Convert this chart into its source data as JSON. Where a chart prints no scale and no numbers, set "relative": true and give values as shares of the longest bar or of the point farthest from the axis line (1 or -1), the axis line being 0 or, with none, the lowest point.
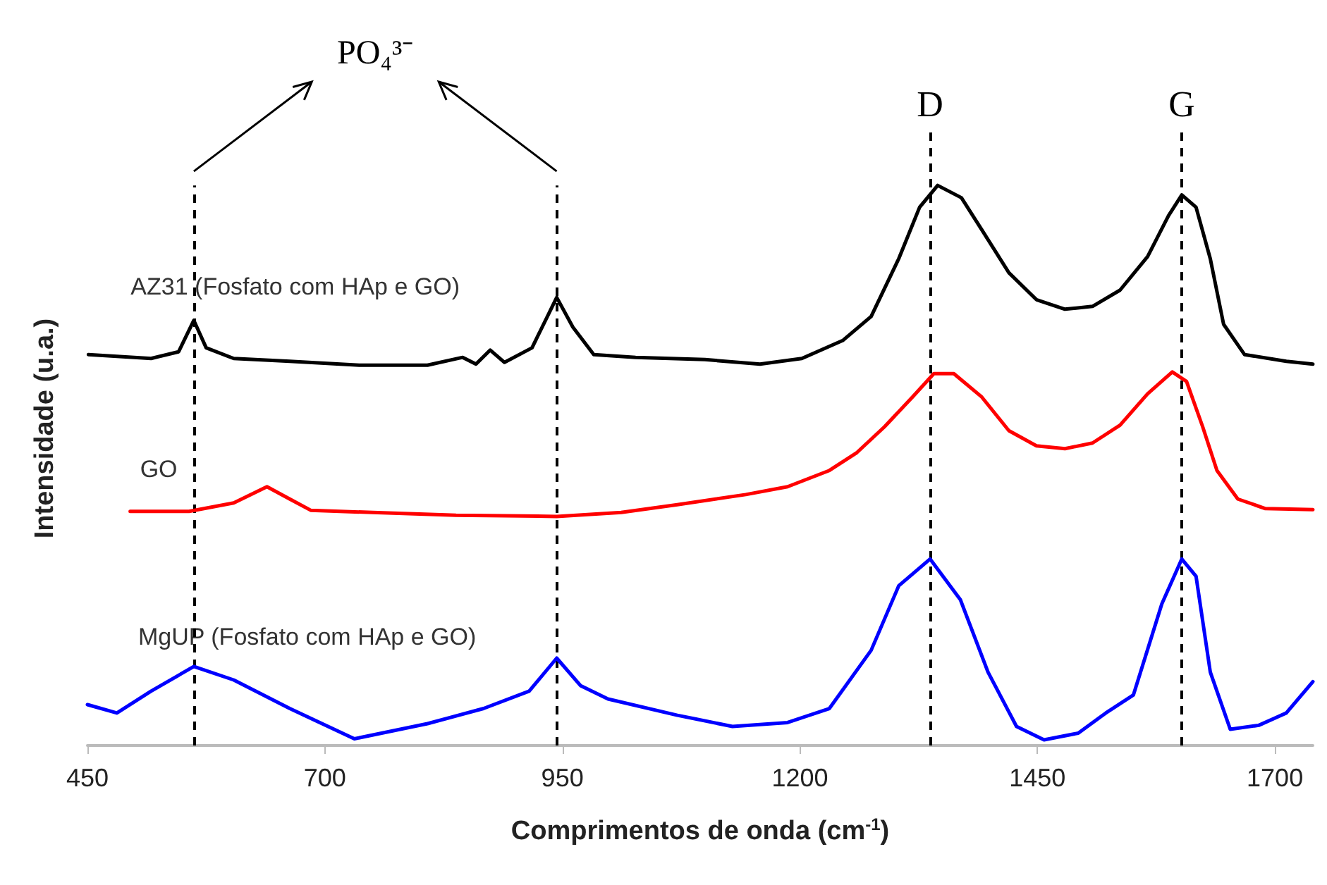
{
  "chart_data": {
    "type": "line",
    "xlabel": "Comprimentos de onda (cm$^{-1}$)",
    "ylabel": "Intensidade (u.a.)",
    "relative": true,
    "xlim": [
      450,
      1740
    ],
    "xticks": [
      450,
      700,
      950,
      1200,
      1450,
      1700
    ],
    "grid": false,
    "legend": false,
    "marker": "none",
    "line_style": "solid",
    "annotations": [
      "PO₄³⁻"
    ],
    "ref_lines": [
      {
        "axis": "x",
        "value": 562,
        "label": null,
        "line_style": "dashed",
        "color": "#000000"
      },
      {
        "axis": "x",
        "value": 944,
        "label": null,
        "line_style": "dashed",
        "color": "#000000"
      },
      {
        "axis": "x",
        "value": 1337,
        "label": "D",
        "line_style": "dashed",
        "color": "#000000"
      },
      {
        "axis": "x",
        "value": 1602,
        "label": "G",
        "line_style": "dashed",
        "color": "#000000"
      }
    ],
    "series": [
      {
        "name": "AZ31 (Fosfato com HAp e GO)",
        "color": "#000000",
        "x": [
          451,
          517,
          546,
          562,
          575,
          604,
          663,
          736,
          808,
          845,
          859,
          874,
          889,
          918,
          944,
          961,
          983,
          1027,
          1100,
          1158,
          1202,
          1245,
          1275,
          1304,
          1326,
          1345,
          1370,
          1391,
          1420,
          1449,
          1479,
          1508,
          1537,
          1566,
          1588,
          1602,
          1617,
          1632,
          1646,
          1668,
          1712,
          1740
        ],
        "values": [
          0.698,
          0.691,
          0.703,
          0.759,
          0.71,
          0.691,
          0.686,
          0.679,
          0.679,
          0.693,
          0.681,
          0.706,
          0.684,
          0.71,
          0.8,
          0.747,
          0.698,
          0.693,
          0.689,
          0.681,
          0.691,
          0.723,
          0.766,
          0.869,
          0.961,
          1.0,
          0.978,
          0.922,
          0.844,
          0.796,
          0.779,
          0.784,
          0.813,
          0.873,
          0.946,
          0.983,
          0.961,
          0.869,
          0.752,
          0.698,
          0.686,
          0.681
        ]
      },
      {
        "name": "GO",
        "color": "#ff0000",
        "x": [
          495,
          557,
          604,
          639,
          663,
          685,
          750,
          838,
          944,
          1012,
          1071,
          1143,
          1187,
          1231,
          1260,
          1289,
          1319,
          1341,
          1362,
          1391,
          1420,
          1449,
          1479,
          1508,
          1537,
          1566,
          1592,
          1607,
          1624,
          1639,
          1661,
          1690,
          1740
        ],
        "values": [
          0.418,
          0.418,
          0.433,
          0.462,
          0.44,
          0.42,
          0.416,
          0.411,
          0.409,
          0.416,
          0.43,
          0.448,
          0.462,
          0.491,
          0.523,
          0.569,
          0.623,
          0.664,
          0.664,
          0.623,
          0.562,
          0.535,
          0.53,
          0.54,
          0.572,
          0.628,
          0.667,
          0.65,
          0.569,
          0.491,
          0.44,
          0.423,
          0.421
        ]
      },
      {
        "name": "MgUP (Fosfato com HAp e GO)",
        "color": "#0000ff",
        "x": [
          450,
          481,
          517,
          562,
          604,
          663,
          731,
          808,
          867,
          915,
          944,
          969,
          998,
          1071,
          1129,
          1187,
          1231,
          1275,
          1304,
          1337,
          1369,
          1398,
          1428,
          1457,
          1493,
          1522,
          1551,
          1581,
          1602,
          1617,
          1632,
          1653,
          1683,
          1712,
          1740
        ],
        "values": [
          0.073,
          0.058,
          0.097,
          0.141,
          0.117,
          0.066,
          0.012,
          0.039,
          0.066,
          0.097,
          0.156,
          0.107,
          0.083,
          0.054,
          0.034,
          0.041,
          0.066,
          0.17,
          0.285,
          0.333,
          0.26,
          0.131,
          0.034,
          0.01,
          0.022,
          0.058,
          0.09,
          0.253,
          0.333,
          0.302,
          0.131,
          0.029,
          0.036,
          0.058,
          0.114
        ]
      }
    ]
  }
}
